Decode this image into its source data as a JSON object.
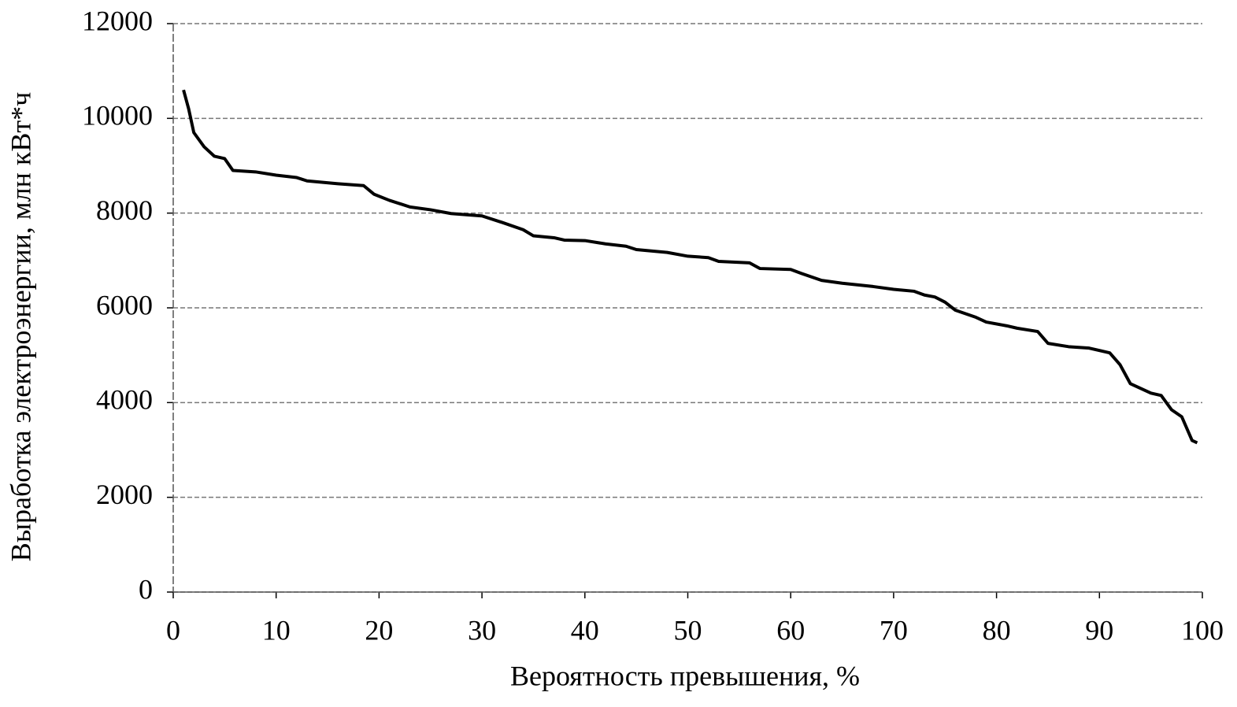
{
  "chart_data": {
    "type": "line",
    "x_label": "Вероятность превышения, %",
    "y_label": "Выработка электроэнергии, млн кВт*ч",
    "x": [
      1,
      1.5,
      2,
      3,
      4,
      5,
      5.8,
      8,
      10,
      12,
      13,
      16,
      18.5,
      19.5,
      21,
      23,
      25,
      27,
      30,
      32,
      34,
      35,
      37,
      38,
      40,
      42,
      44,
      45,
      48,
      50,
      52,
      53,
      56,
      57,
      60,
      61,
      63,
      65,
      68,
      70,
      72,
      73,
      74,
      75,
      76,
      78,
      79,
      81,
      82,
      84,
      85,
      87,
      89,
      91,
      92,
      93,
      94,
      95,
      96,
      97,
      98,
      99,
      99.5
    ],
    "series": [
      {
        "color": "#000000",
        "values": [
          10600,
          10200,
          9700,
          9400,
          9200,
          9150,
          8900,
          8870,
          8800,
          8750,
          8680,
          8620,
          8580,
          8400,
          8270,
          8130,
          8070,
          7990,
          7940,
          7800,
          7650,
          7520,
          7480,
          7430,
          7420,
          7350,
          7300,
          7230,
          7170,
          7090,
          7060,
          6980,
          6950,
          6830,
          6810,
          6730,
          6580,
          6520,
          6450,
          6390,
          6350,
          6270,
          6230,
          6120,
          5950,
          5800,
          5700,
          5620,
          5570,
          5500,
          5250,
          5180,
          5150,
          5050,
          4800,
          4400,
          4300,
          4200,
          4150,
          3850,
          3700,
          3200,
          3150
        ]
      }
    ],
    "xlim": [
      0,
      100
    ],
    "xticks": [
      0,
      10,
      20,
      30,
      40,
      50,
      60,
      70,
      80,
      90,
      100
    ],
    "ylim": [
      0,
      12000
    ],
    "yticks": [
      0,
      2000,
      4000,
      6000,
      8000,
      10000,
      12000
    ],
    "grid": true
  }
}
